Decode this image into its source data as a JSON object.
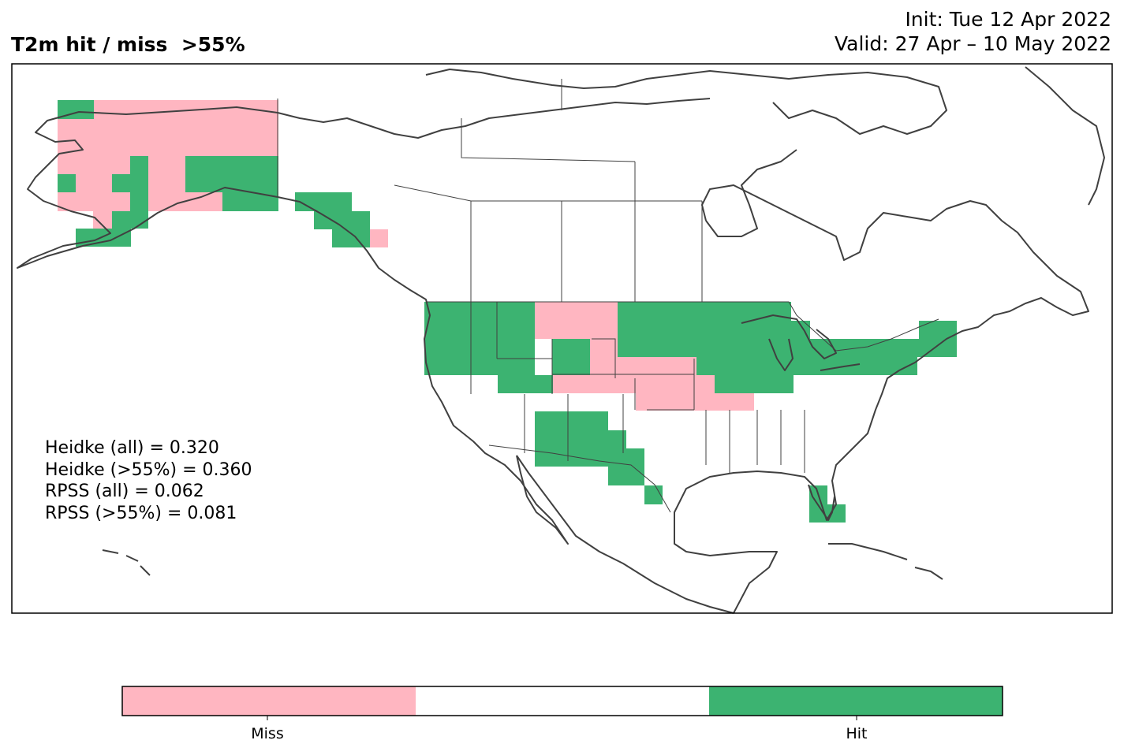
{
  "title": "T2m hit / miss  >55%",
  "init_label": "Init: Tue 12 Apr 2022",
  "valid_label": "Valid: 27 Apr – 10 May 2022",
  "scores": [
    "Heidke (all) = 0.320",
    "Heidke (>55%) = 0.360",
    "RPSS (all) = 0.062",
    "RPSS (>55%) = 0.081"
  ],
  "colorbar": {
    "colors": [
      "#ffb6c1",
      "#ffffff",
      "#3cb371"
    ],
    "tick_labels": [
      "Miss",
      "Hit"
    ]
  },
  "colors": {
    "miss": "#ffb6c1",
    "hit": "#3cb371",
    "coast": "#404040",
    "border": "#000000"
  },
  "map": {
    "region": "North America",
    "cell_states": [
      "miss",
      "no-forecast",
      "hit"
    ]
  }
}
